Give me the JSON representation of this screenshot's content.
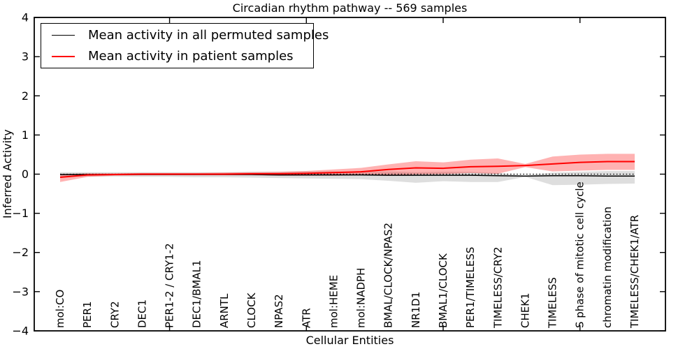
{
  "title": "Circadian rhythm pathway -- 569 samples",
  "legend": {
    "items": [
      {
        "label": "Mean activity in all permuted samples",
        "color": "#000000"
      },
      {
        "label": "Mean activity in patient samples",
        "color": "#ff0000"
      }
    ]
  },
  "axes": {
    "xlabel": "Cellular Entities",
    "ylabel": "Inferred Activity",
    "ytick_labels": [
      "4",
      "3",
      "2",
      "1",
      "0",
      "−1",
      "−2",
      "−3",
      "−4"
    ],
    "ytick_values": [
      4,
      3,
      2,
      1,
      0,
      -1,
      -2,
      -3,
      -4
    ],
    "ylim": [
      -4,
      4
    ]
  },
  "chart_data": {
    "type": "line",
    "title": "Circadian rhythm pathway -- 569 samples",
    "xlabel": "Cellular Entities",
    "ylabel": "Inferred Activity",
    "ylim": [
      -4,
      4
    ],
    "grid": false,
    "legend_position": "upper left",
    "zero_line": {
      "y": 0,
      "style": "dotted",
      "color": "#000000"
    },
    "categories": [
      "mol:CO",
      "PER1",
      "CRY2",
      "DEC1",
      "PER1-2 / CRY1-2",
      "DEC1/BMAL1",
      "ARNTL",
      "CLOCK",
      "NPAS2",
      "ATR",
      "mol:HEME",
      "mol:NADPH",
      "BMAL/CLOCK/NPAS2",
      "NR1D1",
      "BMAL1/CLOCK",
      "PER1/TIMELESS",
      "TIMELESS/CRY2",
      "CHEK1",
      "TIMELESS",
      "S phase of mitotic cell cycle",
      "chromatin modification",
      "TIMELESS/CHEK1/ATR"
    ],
    "series": [
      {
        "name": "Mean activity in all permuted samples",
        "color": "#000000",
        "line_width": 1.5,
        "band_opacity": 0.13,
        "values": [
          -0.01,
          -0.01,
          -0.01,
          -0.01,
          -0.01,
          -0.01,
          -0.01,
          -0.01,
          -0.02,
          -0.02,
          -0.02,
          -0.02,
          -0.03,
          -0.03,
          -0.03,
          -0.03,
          -0.04,
          -0.05,
          -0.04,
          -0.04,
          -0.05,
          -0.05
        ],
        "band_high": [
          0.05,
          0.05,
          0.05,
          0.05,
          0.05,
          0.05,
          0.05,
          0.06,
          0.06,
          0.07,
          0.07,
          0.07,
          0.07,
          0.05,
          0.06,
          0.06,
          0.03,
          -0.04,
          0.04,
          0.06,
          0.08,
          0.08
        ],
        "band_low": [
          -0.07,
          -0.06,
          -0.06,
          -0.07,
          -0.07,
          -0.08,
          -0.08,
          -0.09,
          -0.1,
          -0.11,
          -0.12,
          -0.13,
          -0.17,
          -0.22,
          -0.18,
          -0.2,
          -0.2,
          -0.07,
          -0.28,
          -0.27,
          -0.25,
          -0.24
        ]
      },
      {
        "name": "Mean activity in patient samples",
        "color": "#ff0000",
        "line_width": 2,
        "band_opacity": 0.3,
        "values": [
          -0.08,
          -0.02,
          -0.01,
          0.0,
          0.0,
          0.0,
          0.0,
          0.01,
          0.01,
          0.02,
          0.04,
          0.06,
          0.12,
          0.16,
          0.15,
          0.19,
          0.2,
          0.22,
          0.26,
          0.3,
          0.32,
          0.32
        ],
        "band_high": [
          0.0,
          0.02,
          0.02,
          0.03,
          0.03,
          0.03,
          0.04,
          0.05,
          0.06,
          0.08,
          0.12,
          0.16,
          0.25,
          0.33,
          0.3,
          0.37,
          0.4,
          0.26,
          0.45,
          0.5,
          0.52,
          0.52
        ],
        "band_low": [
          -0.2,
          -0.07,
          -0.04,
          -0.03,
          -0.03,
          -0.03,
          -0.03,
          -0.03,
          -0.04,
          -0.04,
          -0.04,
          -0.03,
          -0.04,
          -0.01,
          0.0,
          0.03,
          0.01,
          0.18,
          0.07,
          0.09,
          0.11,
          0.11
        ]
      }
    ]
  }
}
